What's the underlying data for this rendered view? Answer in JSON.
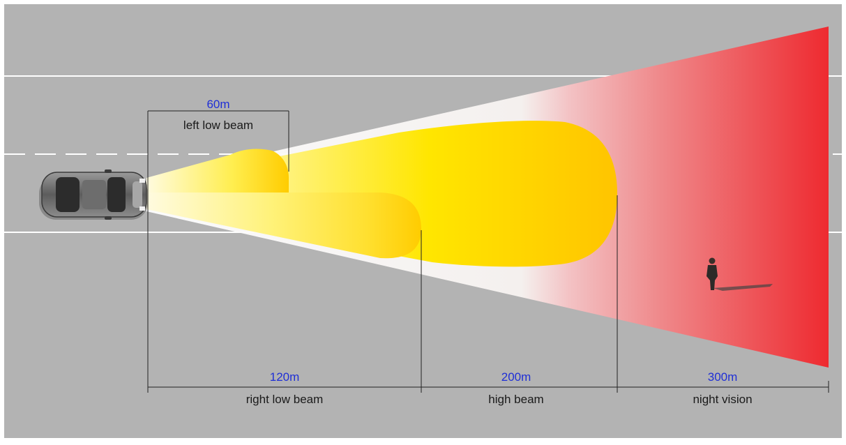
{
  "colors": {
    "road": "#b3b3b3",
    "lane_line": "#ffffff",
    "beam_yellow": "#ffe600",
    "beam_orange": "#ffc000",
    "night_vision_red": "#ee2a30",
    "distance_text": "#1f2fd6",
    "label_text": "#1a1a1a"
  },
  "icons": [
    "car-icon",
    "pedestrian-icon"
  ],
  "ranges": [
    {
      "id": "left-low-beam",
      "distance": "60m",
      "label": "left low beam"
    },
    {
      "id": "right-low-beam",
      "distance": "120m",
      "label": "right low beam"
    },
    {
      "id": "high-beam",
      "distance": "200m",
      "label": "high beam"
    },
    {
      "id": "night-vision",
      "distance": "300m",
      "label": "night vision"
    }
  ]
}
